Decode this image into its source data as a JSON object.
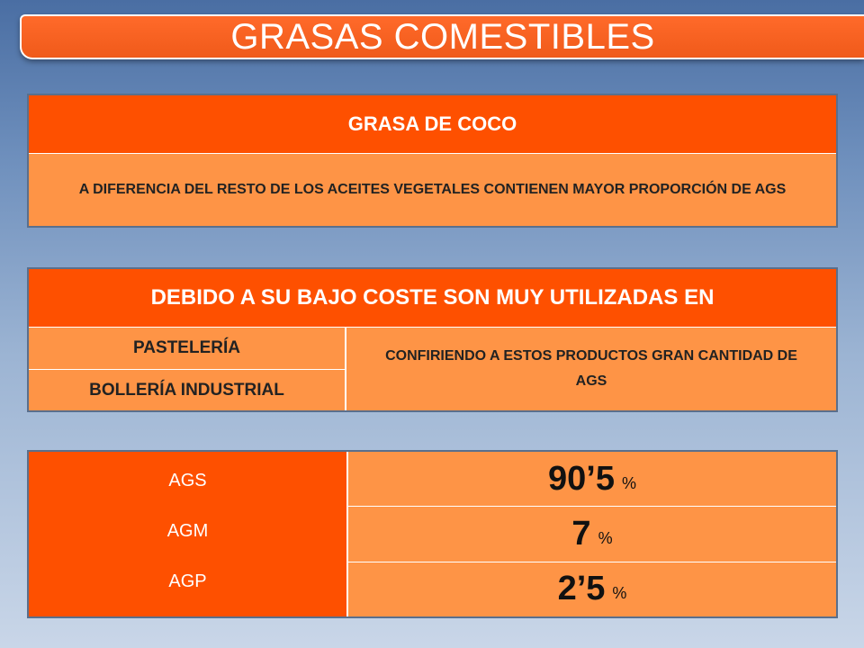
{
  "title": "GRASAS COMESTIBLES",
  "box1": {
    "header": "GRASA DE COCO",
    "text": "A DIFERENCIA DEL RESTO DE LOS ACEITES VEGETALES CONTIENEN MAYOR PROPORCIÓN DE AGS"
  },
  "box2": {
    "header": "DEBIDO A SU BAJO COSTE SON MUY UTILIZADAS EN",
    "items": [
      "PASTELERÍA",
      "BOLLERÍA INDUSTRIAL"
    ],
    "note": "CONFIRIENDO A ESTOS PRODUCTOS GRAN CANTIDAD DE AGS"
  },
  "box3": {
    "rows": [
      {
        "label": "AGS",
        "value": "90’5",
        "unit": "%"
      },
      {
        "label": "AGM",
        "value": "7",
        "unit": "%"
      },
      {
        "label": "AGP",
        "value": "2’5",
        "unit": "%"
      }
    ]
  },
  "colors": {
    "header_orange": "#fe5000",
    "cell_orange": "#fe9446",
    "background_blue": "#6f90bd"
  }
}
